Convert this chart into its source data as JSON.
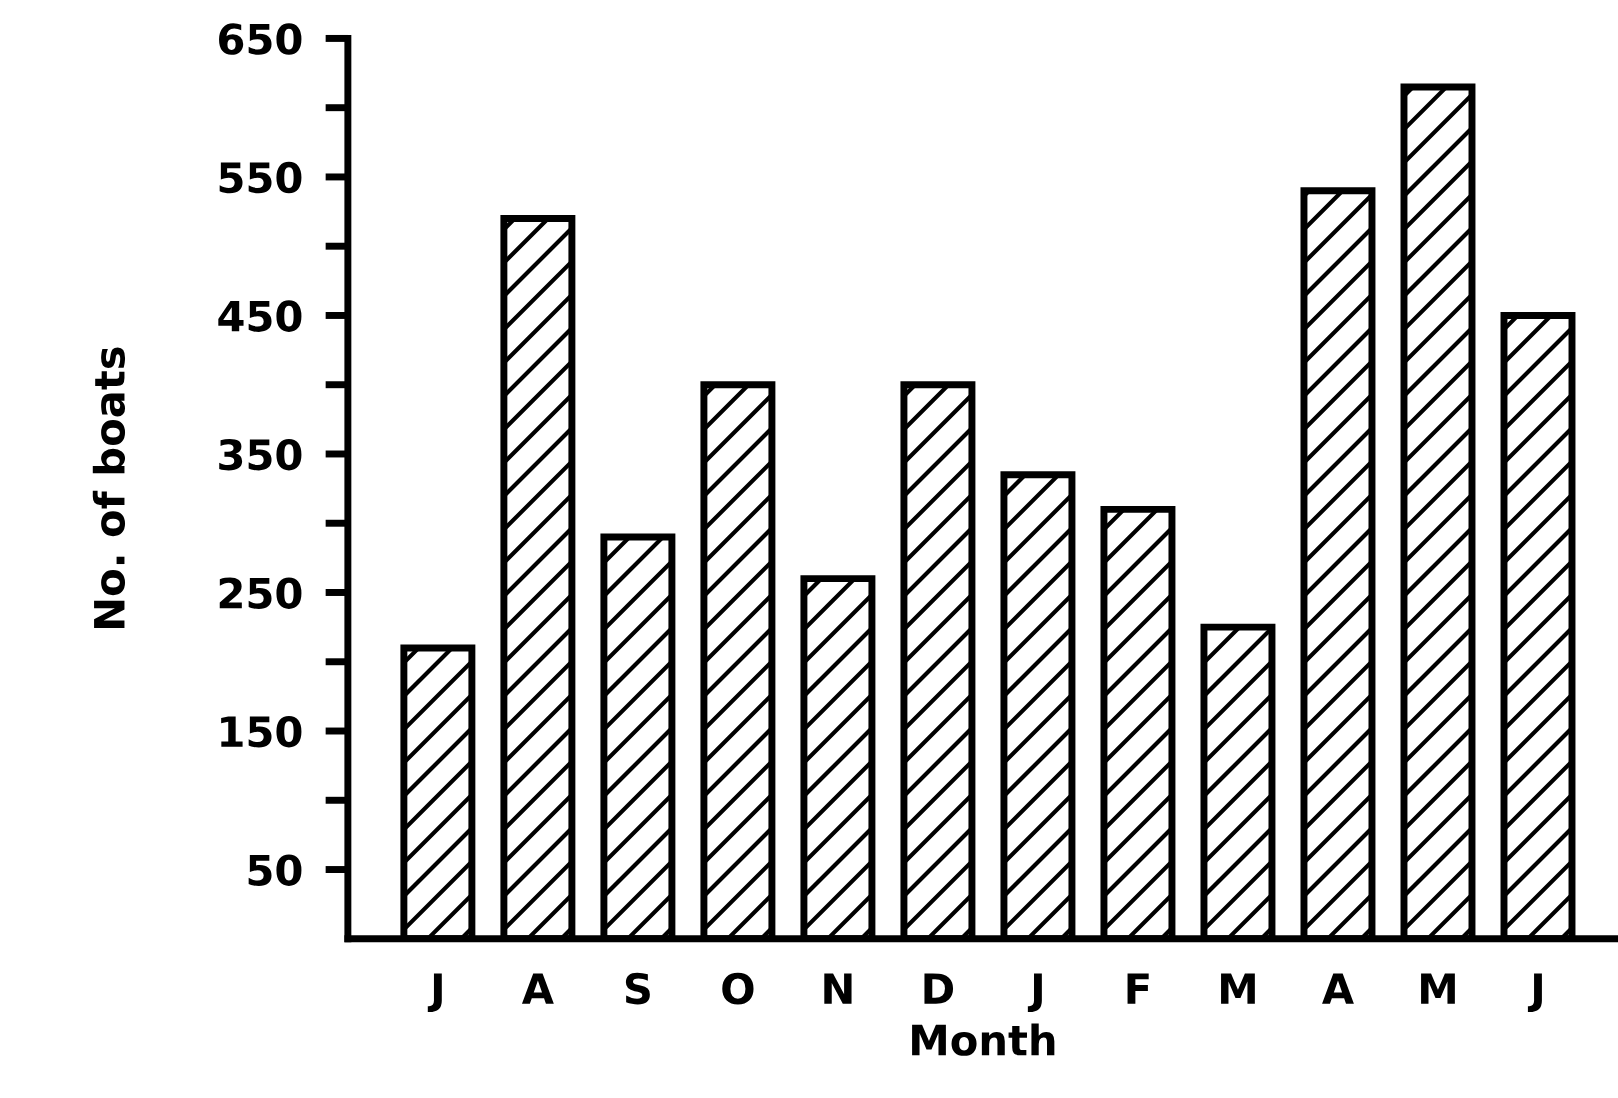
{
  "chart_data": {
    "type": "bar",
    "xlabel": "Month",
    "ylabel": "No. of boats",
    "categories": [
      "J",
      "A",
      "S",
      "O",
      "N",
      "D",
      "J",
      "F",
      "M",
      "A",
      "M",
      "J"
    ],
    "values": [
      210,
      520,
      290,
      400,
      260,
      400,
      335,
      310,
      225,
      540,
      615,
      450
    ],
    "color": "#000000",
    "ylim": [
      0,
      650
    ],
    "yticks": [
      50,
      {
        "value": 100,
        "label": null
      },
      150,
      {
        "value": 200,
        "label": null
      },
      250,
      {
        "value": 300,
        "label": null
      },
      350,
      {
        "value": 400,
        "label": null
      },
      450,
      {
        "value": 500,
        "label": null
      },
      550,
      {
        "value": 600,
        "label": null
      },
      650
    ],
    "grid": false
  }
}
